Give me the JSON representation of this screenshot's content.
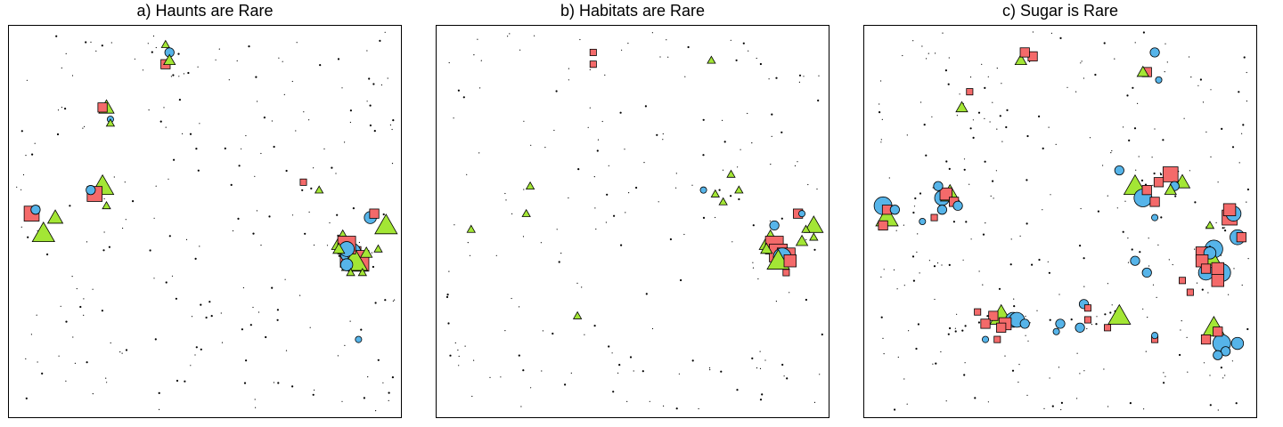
{
  "colors": {
    "circle": "#56b4e9",
    "square": "#f46a6a",
    "triangle": "#a3e635",
    "outline": "#000000",
    "dot": "#000000"
  },
  "chart_data": [
    {
      "type": "scatter",
      "title": "a) Haunts are Rare",
      "xlim": [
        0,
        100
      ],
      "ylim": [
        0,
        100
      ],
      "grid": false,
      "legend": "none",
      "points": [
        {
          "shape": "square",
          "x": 6,
          "y": 52,
          "s": 4
        },
        {
          "shape": "circle",
          "x": 7,
          "y": 53,
          "s": 2
        },
        {
          "shape": "triangle",
          "x": 9,
          "y": 47,
          "s": 5
        },
        {
          "shape": "triangle",
          "x": 12,
          "y": 51,
          "s": 3
        },
        {
          "shape": "triangle",
          "x": 24,
          "y": 59,
          "s": 5
        },
        {
          "shape": "square",
          "x": 22,
          "y": 57,
          "s": 4
        },
        {
          "shape": "circle",
          "x": 21,
          "y": 58,
          "s": 2
        },
        {
          "shape": "triangle",
          "x": 25,
          "y": 54,
          "s": 1
        },
        {
          "shape": "triangle",
          "x": 25,
          "y": 79,
          "s": 3
        },
        {
          "shape": "square",
          "x": 24,
          "y": 79,
          "s": 2
        },
        {
          "shape": "circle",
          "x": 26,
          "y": 76,
          "s": 1
        },
        {
          "shape": "triangle",
          "x": 26,
          "y": 75,
          "s": 1
        },
        {
          "shape": "circle",
          "x": 41,
          "y": 93,
          "s": 2
        },
        {
          "shape": "square",
          "x": 40,
          "y": 90,
          "s": 2
        },
        {
          "shape": "triangle",
          "x": 41,
          "y": 91,
          "s": 2
        },
        {
          "shape": "triangle",
          "x": 40,
          "y": 95,
          "s": 1
        },
        {
          "shape": "circle",
          "x": 92,
          "y": 51,
          "s": 3
        },
        {
          "shape": "square",
          "x": 93,
          "y": 52,
          "s": 2
        },
        {
          "shape": "triangle",
          "x": 96,
          "y": 49,
          "s": 5
        },
        {
          "shape": "triangle",
          "x": 85,
          "y": 45,
          "s": 5
        },
        {
          "shape": "square",
          "x": 86,
          "y": 44,
          "s": 5
        },
        {
          "shape": "circle",
          "x": 86,
          "y": 43,
          "s": 4
        },
        {
          "shape": "square",
          "x": 87,
          "y": 41,
          "s": 6
        },
        {
          "shape": "circle",
          "x": 87,
          "y": 42,
          "s": 6
        },
        {
          "shape": "square",
          "x": 89,
          "y": 40,
          "s": 6
        },
        {
          "shape": "triangle",
          "x": 88,
          "y": 40,
          "s": 6
        },
        {
          "shape": "circle",
          "x": 86,
          "y": 39,
          "s": 3
        },
        {
          "shape": "triangle",
          "x": 84,
          "y": 43,
          "s": 2
        },
        {
          "shape": "triangle",
          "x": 91,
          "y": 42,
          "s": 2
        },
        {
          "shape": "triangle",
          "x": 94,
          "y": 43,
          "s": 1
        },
        {
          "shape": "triangle",
          "x": 90,
          "y": 37,
          "s": 1
        },
        {
          "shape": "triangle",
          "x": 87,
          "y": 37,
          "s": 1
        },
        {
          "shape": "square",
          "x": 75,
          "y": 60,
          "s": 1
        },
        {
          "shape": "triangle",
          "x": 79,
          "y": 58,
          "s": 1
        },
        {
          "shape": "circle",
          "x": 89,
          "y": 20,
          "s": 1
        }
      ]
    },
    {
      "type": "scatter",
      "title": "b) Habitats are Rare",
      "xlim": [
        0,
        100
      ],
      "ylim": [
        0,
        100
      ],
      "grid": false,
      "legend": "none",
      "points": [
        {
          "shape": "triangle",
          "x": 24,
          "y": 59,
          "s": 1
        },
        {
          "shape": "triangle",
          "x": 23,
          "y": 52,
          "s": 1
        },
        {
          "shape": "triangle",
          "x": 9,
          "y": 48,
          "s": 1
        },
        {
          "shape": "square",
          "x": 40,
          "y": 93,
          "s": 1
        },
        {
          "shape": "square",
          "x": 40,
          "y": 90,
          "s": 1
        },
        {
          "shape": "triangle",
          "x": 70,
          "y": 91,
          "s": 1
        },
        {
          "shape": "triangle",
          "x": 71,
          "y": 57,
          "s": 1
        },
        {
          "shape": "triangle",
          "x": 75,
          "y": 62,
          "s": 1
        },
        {
          "shape": "circle",
          "x": 68,
          "y": 58,
          "s": 1
        },
        {
          "shape": "triangle",
          "x": 77,
          "y": 58,
          "s": 1
        },
        {
          "shape": "triangle",
          "x": 73,
          "y": 55,
          "s": 1
        },
        {
          "shape": "square",
          "x": 92,
          "y": 52,
          "s": 2
        },
        {
          "shape": "circle",
          "x": 93,
          "y": 52,
          "s": 1
        },
        {
          "shape": "triangle",
          "x": 96,
          "y": 49,
          "s": 4
        },
        {
          "shape": "circle",
          "x": 86,
          "y": 49,
          "s": 2
        },
        {
          "shape": "triangle",
          "x": 85,
          "y": 45,
          "s": 5
        },
        {
          "shape": "square",
          "x": 86,
          "y": 44,
          "s": 5
        },
        {
          "shape": "square",
          "x": 87,
          "y": 42,
          "s": 5
        },
        {
          "shape": "square",
          "x": 89,
          "y": 41,
          "s": 5
        },
        {
          "shape": "circle",
          "x": 88,
          "y": 41,
          "s": 5
        },
        {
          "shape": "triangle",
          "x": 87,
          "y": 40,
          "s": 5
        },
        {
          "shape": "square",
          "x": 90,
          "y": 40,
          "s": 3
        },
        {
          "shape": "triangle",
          "x": 93,
          "y": 45,
          "s": 2
        },
        {
          "shape": "triangle",
          "x": 84,
          "y": 43,
          "s": 2
        },
        {
          "shape": "triangle",
          "x": 94,
          "y": 48,
          "s": 1
        },
        {
          "shape": "square",
          "x": 89,
          "y": 37,
          "s": 1
        },
        {
          "shape": "triangle",
          "x": 96,
          "y": 46,
          "s": 1
        },
        {
          "shape": "triangle",
          "x": 36,
          "y": 26,
          "s": 1
        }
      ]
    },
    {
      "type": "scatter",
      "title": "c) Sugar is Rare",
      "xlim": [
        0,
        100
      ],
      "ylim": [
        0,
        100
      ],
      "grid": false,
      "legend": "none",
      "points": [
        {
          "shape": "circle",
          "x": 5,
          "y": 54,
          "s": 5
        },
        {
          "shape": "triangle",
          "x": 6,
          "y": 51,
          "s": 5
        },
        {
          "shape": "square",
          "x": 6,
          "y": 53,
          "s": 2
        },
        {
          "shape": "circle",
          "x": 8,
          "y": 53,
          "s": 2
        },
        {
          "shape": "square",
          "x": 5,
          "y": 49,
          "s": 2
        },
        {
          "shape": "circle",
          "x": 20,
          "y": 56,
          "s": 4
        },
        {
          "shape": "triangle",
          "x": 22,
          "y": 57,
          "s": 4
        },
        {
          "shape": "square",
          "x": 21,
          "y": 57,
          "s": 3
        },
        {
          "shape": "circle",
          "x": 19,
          "y": 59,
          "s": 2
        },
        {
          "shape": "square",
          "x": 23,
          "y": 55,
          "s": 2
        },
        {
          "shape": "circle",
          "x": 24,
          "y": 54,
          "s": 2
        },
        {
          "shape": "triangle",
          "x": 25,
          "y": 79,
          "s": 2
        },
        {
          "shape": "circle",
          "x": 20,
          "y": 53,
          "s": 2
        },
        {
          "shape": "square",
          "x": 27,
          "y": 83,
          "s": 1
        },
        {
          "shape": "circle",
          "x": 15,
          "y": 50,
          "s": 1
        },
        {
          "shape": "square",
          "x": 18,
          "y": 51,
          "s": 1
        },
        {
          "shape": "triangle",
          "x": 40,
          "y": 91,
          "s": 2
        },
        {
          "shape": "square",
          "x": 43,
          "y": 92,
          "s": 2
        },
        {
          "shape": "square",
          "x": 41,
          "y": 93,
          "s": 2
        },
        {
          "shape": "circle",
          "x": 74,
          "y": 93,
          "s": 2
        },
        {
          "shape": "square",
          "x": 72,
          "y": 88,
          "s": 2
        },
        {
          "shape": "triangle",
          "x": 71,
          "y": 88,
          "s": 2
        },
        {
          "shape": "circle",
          "x": 75,
          "y": 86,
          "s": 1
        },
        {
          "shape": "triangle",
          "x": 69,
          "y": 59,
          "s": 5
        },
        {
          "shape": "circle",
          "x": 71,
          "y": 56,
          "s": 5
        },
        {
          "shape": "square",
          "x": 78,
          "y": 62,
          "s": 4
        },
        {
          "shape": "square",
          "x": 75,
          "y": 60,
          "s": 2
        },
        {
          "shape": "triangle",
          "x": 81,
          "y": 60,
          "s": 3
        },
        {
          "shape": "square",
          "x": 72,
          "y": 58,
          "s": 2
        },
        {
          "shape": "circle",
          "x": 79,
          "y": 59,
          "s": 2
        },
        {
          "shape": "triangle",
          "x": 78,
          "y": 58,
          "s": 2
        },
        {
          "shape": "square",
          "x": 74,
          "y": 55,
          "s": 2
        },
        {
          "shape": "circle",
          "x": 74,
          "y": 51,
          "s": 1
        },
        {
          "shape": "circle",
          "x": 65,
          "y": 63,
          "s": 2
        },
        {
          "shape": "square",
          "x": 93,
          "y": 51,
          "s": 4
        },
        {
          "shape": "square",
          "x": 93,
          "y": 53,
          "s": 3
        },
        {
          "shape": "circle",
          "x": 94,
          "y": 52,
          "s": 4
        },
        {
          "shape": "triangle",
          "x": 88,
          "y": 49,
          "s": 1
        },
        {
          "shape": "circle",
          "x": 95,
          "y": 46,
          "s": 4
        },
        {
          "shape": "square",
          "x": 96,
          "y": 46,
          "s": 2
        },
        {
          "shape": "circle",
          "x": 89,
          "y": 43,
          "s": 5
        },
        {
          "shape": "triangle",
          "x": 88,
          "y": 41,
          "s": 5
        },
        {
          "shape": "square",
          "x": 86,
          "y": 42,
          "s": 3
        },
        {
          "shape": "square",
          "x": 87,
          "y": 38,
          "s": 2
        },
        {
          "shape": "circle",
          "x": 91,
          "y": 37,
          "s": 5
        },
        {
          "shape": "square",
          "x": 90,
          "y": 38,
          "s": 3
        },
        {
          "shape": "circle",
          "x": 87,
          "y": 37,
          "s": 4
        },
        {
          "shape": "square",
          "x": 90,
          "y": 35,
          "s": 3
        },
        {
          "shape": "circle",
          "x": 88,
          "y": 42,
          "s": 3
        },
        {
          "shape": "square",
          "x": 86,
          "y": 40,
          "s": 3
        },
        {
          "shape": "triangle",
          "x": 89,
          "y": 23,
          "s": 5
        },
        {
          "shape": "square",
          "x": 90,
          "y": 22,
          "s": 2
        },
        {
          "shape": "circle",
          "x": 91,
          "y": 19,
          "s": 5
        },
        {
          "shape": "circle",
          "x": 95,
          "y": 19,
          "s": 3
        },
        {
          "shape": "square",
          "x": 87,
          "y": 20,
          "s": 2
        },
        {
          "shape": "circle",
          "x": 92,
          "y": 17,
          "s": 2
        },
        {
          "shape": "circle",
          "x": 90,
          "y": 16,
          "s": 2
        },
        {
          "shape": "triangle",
          "x": 35,
          "y": 26,
          "s": 5
        },
        {
          "shape": "circle",
          "x": 38,
          "y": 25,
          "s": 4
        },
        {
          "shape": "circle",
          "x": 39,
          "y": 25,
          "s": 4
        },
        {
          "shape": "square",
          "x": 36,
          "y": 24,
          "s": 3
        },
        {
          "shape": "square",
          "x": 33,
          "y": 26,
          "s": 2
        },
        {
          "shape": "square",
          "x": 35,
          "y": 23,
          "s": 2
        },
        {
          "shape": "square",
          "x": 31,
          "y": 24,
          "s": 2
        },
        {
          "shape": "circle",
          "x": 41,
          "y": 24,
          "s": 2
        },
        {
          "shape": "square",
          "x": 29,
          "y": 27,
          "s": 1
        },
        {
          "shape": "square",
          "x": 34,
          "y": 20,
          "s": 1
        },
        {
          "shape": "circle",
          "x": 31,
          "y": 20,
          "s": 1
        },
        {
          "shape": "circle",
          "x": 56,
          "y": 29,
          "s": 2
        },
        {
          "shape": "square",
          "x": 57,
          "y": 28,
          "s": 1
        },
        {
          "shape": "circle",
          "x": 50,
          "y": 24,
          "s": 2
        },
        {
          "shape": "circle",
          "x": 55,
          "y": 23,
          "s": 2
        },
        {
          "shape": "square",
          "x": 57,
          "y": 25,
          "s": 1
        },
        {
          "shape": "triangle",
          "x": 65,
          "y": 26,
          "s": 5
        },
        {
          "shape": "square",
          "x": 62,
          "y": 23,
          "s": 1
        },
        {
          "shape": "circle",
          "x": 49,
          "y": 22,
          "s": 1
        },
        {
          "shape": "square",
          "x": 74,
          "y": 20,
          "s": 1
        },
        {
          "shape": "circle",
          "x": 69,
          "y": 40,
          "s": 2
        },
        {
          "shape": "circle",
          "x": 72,
          "y": 37,
          "s": 2
        },
        {
          "shape": "square",
          "x": 83,
          "y": 32,
          "s": 1
        },
        {
          "shape": "square",
          "x": 81,
          "y": 35,
          "s": 1
        },
        {
          "shape": "circle",
          "x": 74,
          "y": 21,
          "s": 1
        }
      ]
    }
  ]
}
